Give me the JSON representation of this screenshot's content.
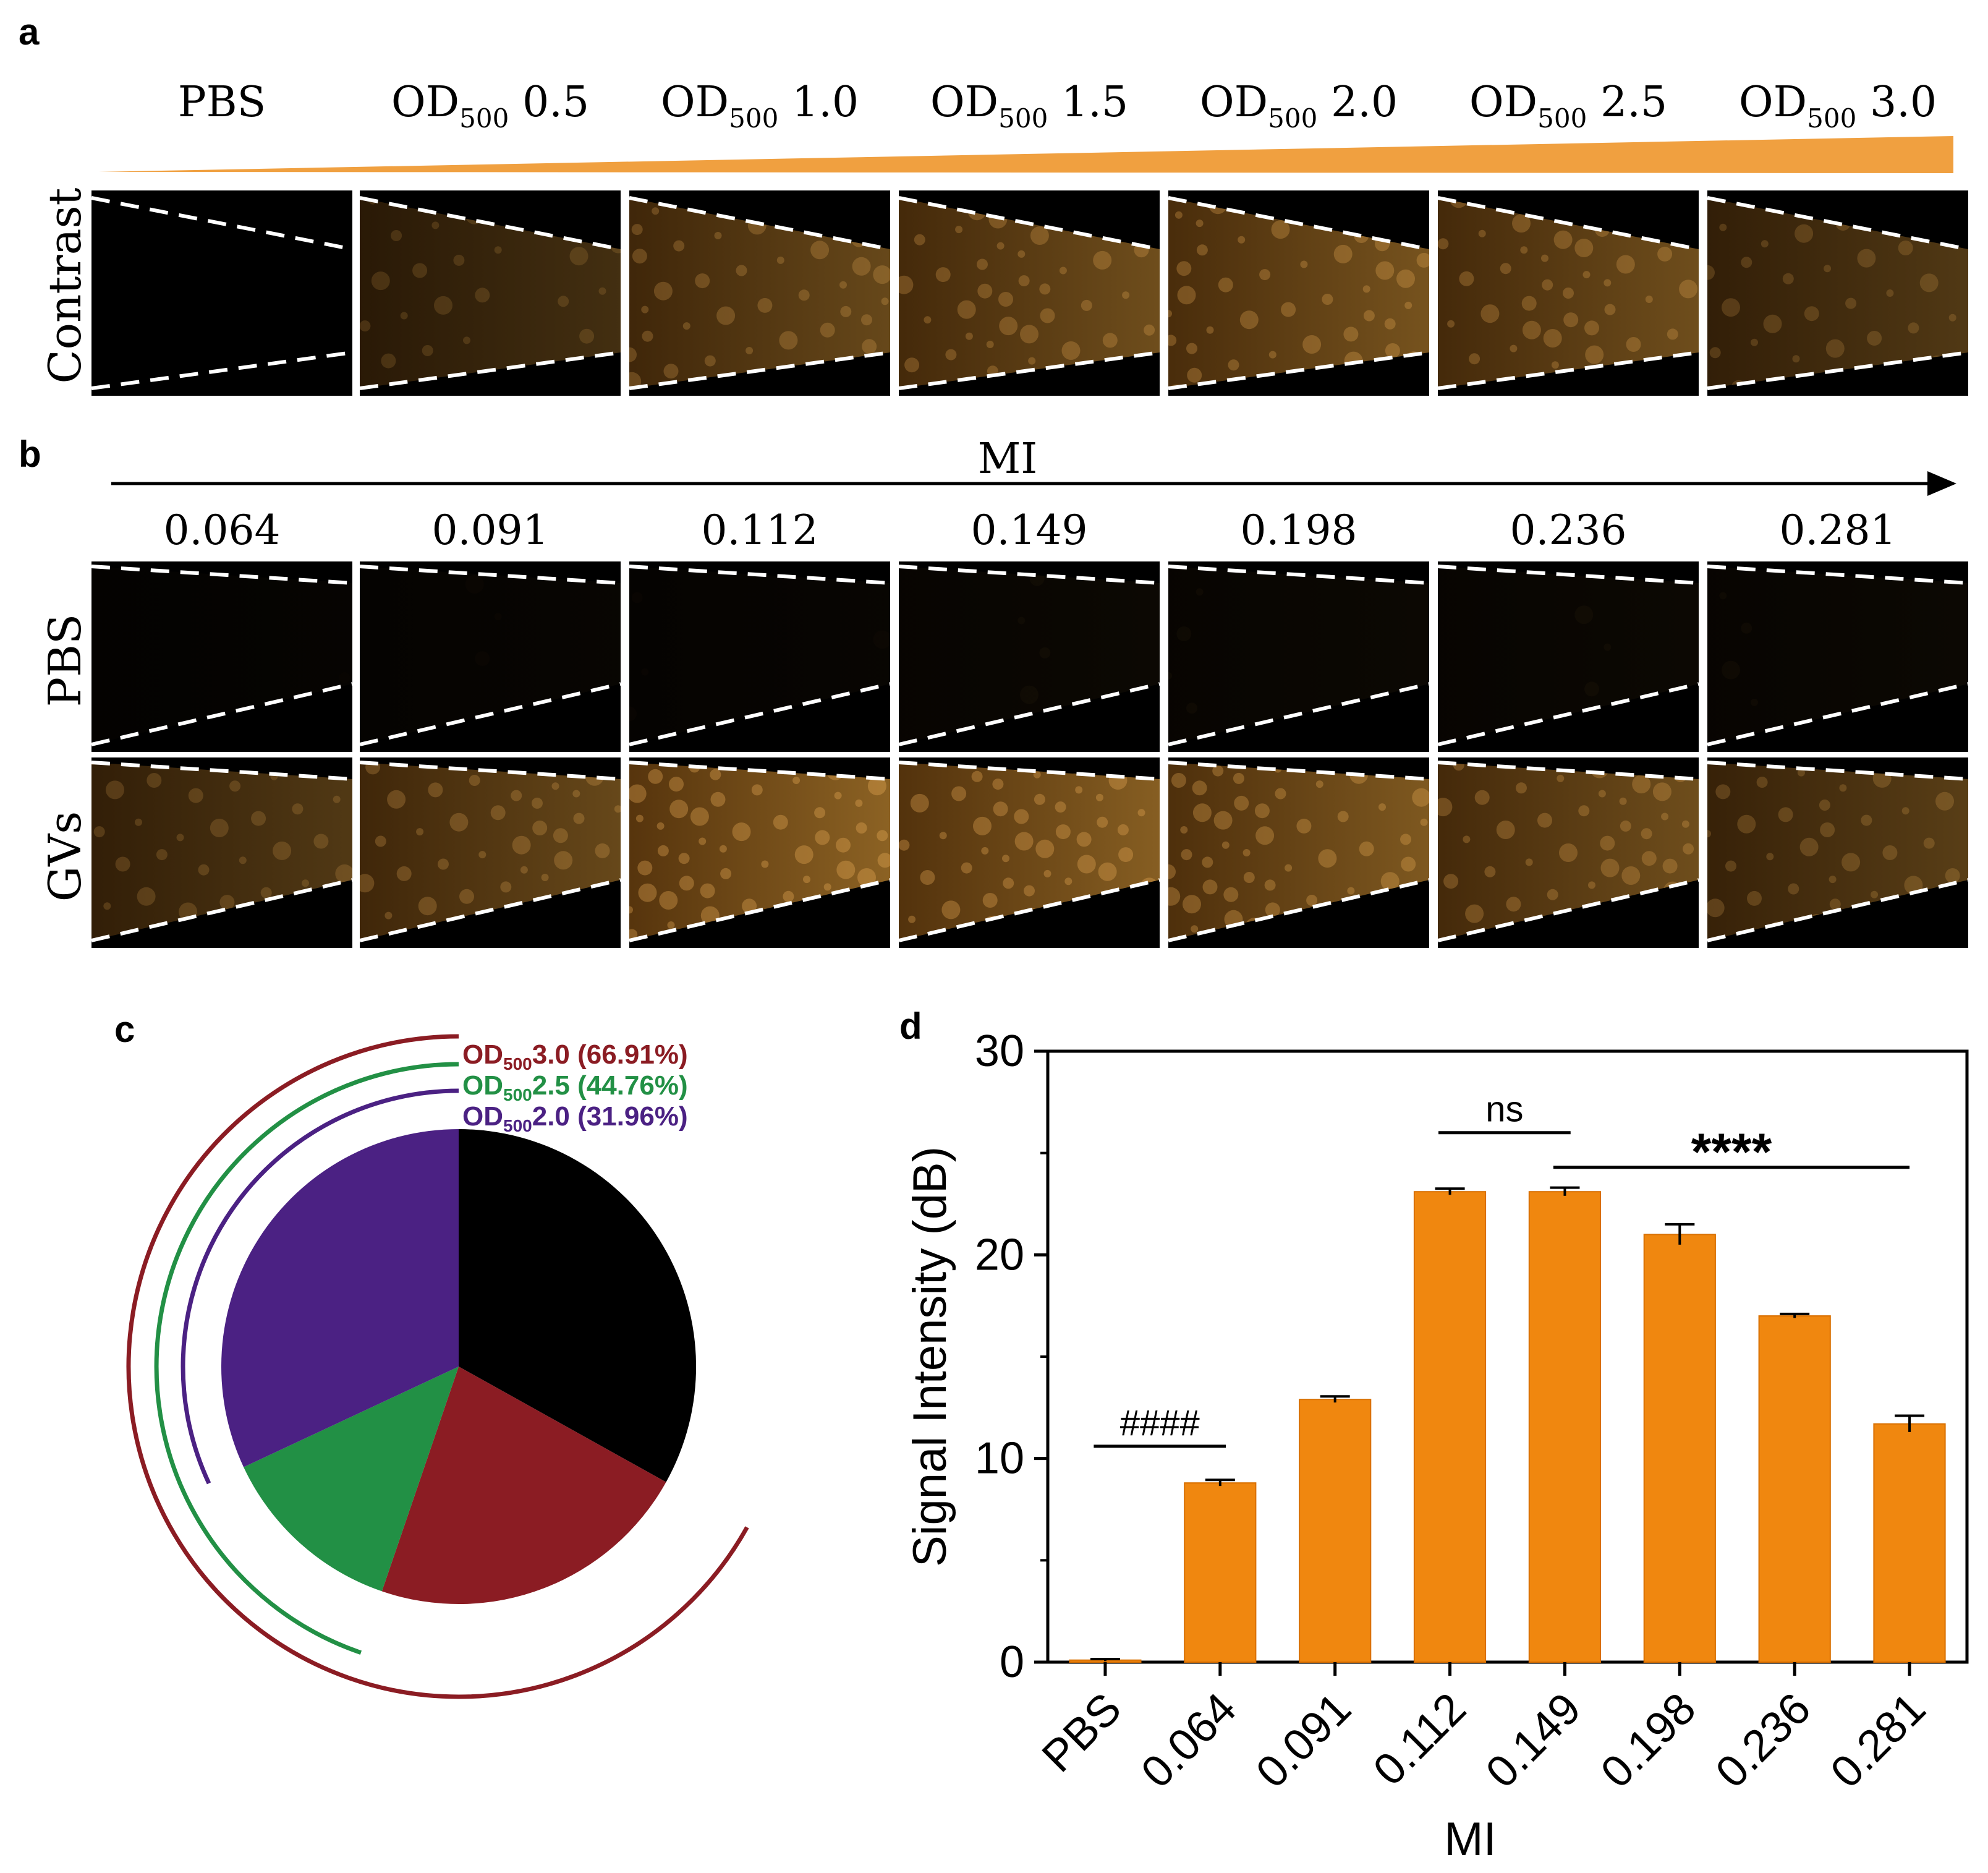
{
  "panels": {
    "a": {
      "label": "a",
      "headers": [
        {
          "base": "PBS",
          "sub": "",
          "value": ""
        },
        {
          "base": "OD",
          "sub": "500",
          "value": "0.5"
        },
        {
          "base": "OD",
          "sub": "500",
          "value": "1.0"
        },
        {
          "base": "OD",
          "sub": "500",
          "value": "1.5"
        },
        {
          "base": "OD",
          "sub": "500",
          "value": "2.0"
        },
        {
          "base": "OD",
          "sub": "500",
          "value": "2.5"
        },
        {
          "base": "OD",
          "sub": "500",
          "value": "3.0"
        }
      ],
      "row_label": "Contrast",
      "gradient_color": "#f0a040",
      "image_brightness": [
        0.0,
        0.45,
        0.7,
        0.75,
        0.8,
        0.75,
        0.55
      ]
    },
    "b": {
      "label": "b",
      "axis_label": "MI",
      "mi_values": [
        "0.064",
        "0.091",
        "0.112",
        "0.149",
        "0.198",
        "0.236",
        "0.281"
      ],
      "rows": [
        {
          "label": "PBS",
          "brightness": [
            0.04,
            0.06,
            0.06,
            0.08,
            0.08,
            0.08,
            0.08
          ]
        },
        {
          "label": "GVs",
          "brightness": [
            0.55,
            0.7,
            0.95,
            0.9,
            0.85,
            0.75,
            0.6
          ]
        }
      ]
    },
    "c": {
      "label": "c",
      "arcs": [
        {
          "base": "OD",
          "sub": "500",
          "value": "3.0",
          "pct": "(66.91%)",
          "fraction": 0.6691,
          "color": "#8b1c23"
        },
        {
          "base": "OD",
          "sub": "500",
          "value": "2.5",
          "pct": "(44.76%)",
          "fraction": 0.4476,
          "color": "#229045"
        },
        {
          "base": "OD",
          "sub": "500",
          "value": "2.0",
          "pct": "(31.96%)",
          "fraction": 0.3196,
          "color": "#4b2183"
        }
      ],
      "slices_colors": [
        "#000000",
        "#8b1c23",
        "#229045",
        "#4b2183"
      ]
    }
  },
  "chart_data": {
    "type": "bar",
    "panel_label": "d",
    "categories": [
      "PBS",
      "0.064",
      "0.091",
      "0.112",
      "0.149",
      "0.198",
      "0.236",
      "0.281"
    ],
    "values": [
      0.1,
      8.8,
      12.9,
      23.1,
      23.1,
      21.0,
      17.0,
      11.7
    ],
    "errors": [
      0.05,
      0.15,
      0.15,
      0.15,
      0.2,
      0.5,
      0.1,
      0.4
    ],
    "xlabel": "MI",
    "ylabel": "Signal Intensity (dB)",
    "ylim": [
      0,
      30
    ],
    "yticks": [
      "0",
      "10",
      "20",
      "30"
    ],
    "bar_color": "#f0870f",
    "annotations": [
      {
        "text": "####",
        "from": 0,
        "to": 1,
        "y": 10.6
      },
      {
        "text": "ns",
        "from": 3,
        "to": 4,
        "y": 26.0
      },
      {
        "text": "****",
        "from": 4,
        "to": 7,
        "y": 24.3
      }
    ]
  }
}
